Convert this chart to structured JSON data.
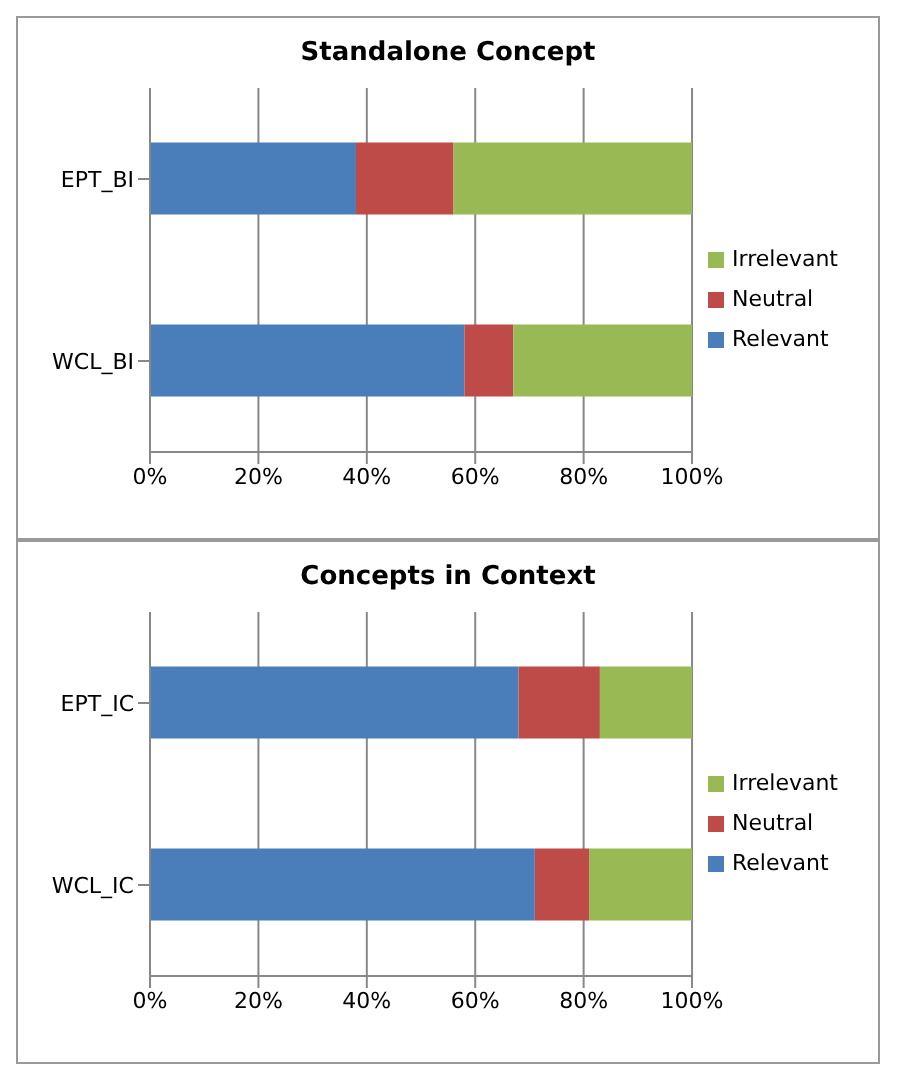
{
  "chart_data": [
    {
      "type": "bar",
      "orientation": "horizontal",
      "stacked": true,
      "title": "Standalone Concept",
      "categories": [
        "EPT_BI",
        "WCL_BI"
      ],
      "series": [
        {
          "name": "Relevant",
          "color": "#4a7ebb",
          "values": [
            38,
            58
          ]
        },
        {
          "name": "Neutral",
          "color": "#be4b48",
          "values": [
            18,
            9
          ]
        },
        {
          "name": "Irrelevant",
          "color": "#98b954",
          "values": [
            44,
            33
          ]
        }
      ],
      "xlim": [
        0,
        100
      ],
      "xticks": [
        {
          "value": 0,
          "label": "0%"
        },
        {
          "value": 20,
          "label": "20%"
        },
        {
          "value": 40,
          "label": "40%"
        },
        {
          "value": 60,
          "label": "60%"
        },
        {
          "value": 80,
          "label": "80%"
        },
        {
          "value": 100,
          "label": "100%"
        }
      ],
      "grid": "x",
      "legend": "right"
    },
    {
      "type": "bar",
      "orientation": "horizontal",
      "stacked": true,
      "title": "Concepts in Context",
      "categories": [
        "EPT_IC",
        "WCL_IC"
      ],
      "series": [
        {
          "name": "Relevant",
          "color": "#4a7ebb",
          "values": [
            68,
            71
          ]
        },
        {
          "name": "Neutral",
          "color": "#be4b48",
          "values": [
            15,
            10
          ]
        },
        {
          "name": "Irrelevant",
          "color": "#98b954",
          "values": [
            17,
            19
          ]
        }
      ],
      "xlim": [
        0,
        100
      ],
      "xticks": [
        {
          "value": 0,
          "label": "0%"
        },
        {
          "value": 20,
          "label": "20%"
        },
        {
          "value": 40,
          "label": "40%"
        },
        {
          "value": 60,
          "label": "60%"
        },
        {
          "value": 80,
          "label": "80%"
        },
        {
          "value": 100,
          "label": "100%"
        }
      ],
      "grid": "x",
      "legend": "right"
    }
  ]
}
